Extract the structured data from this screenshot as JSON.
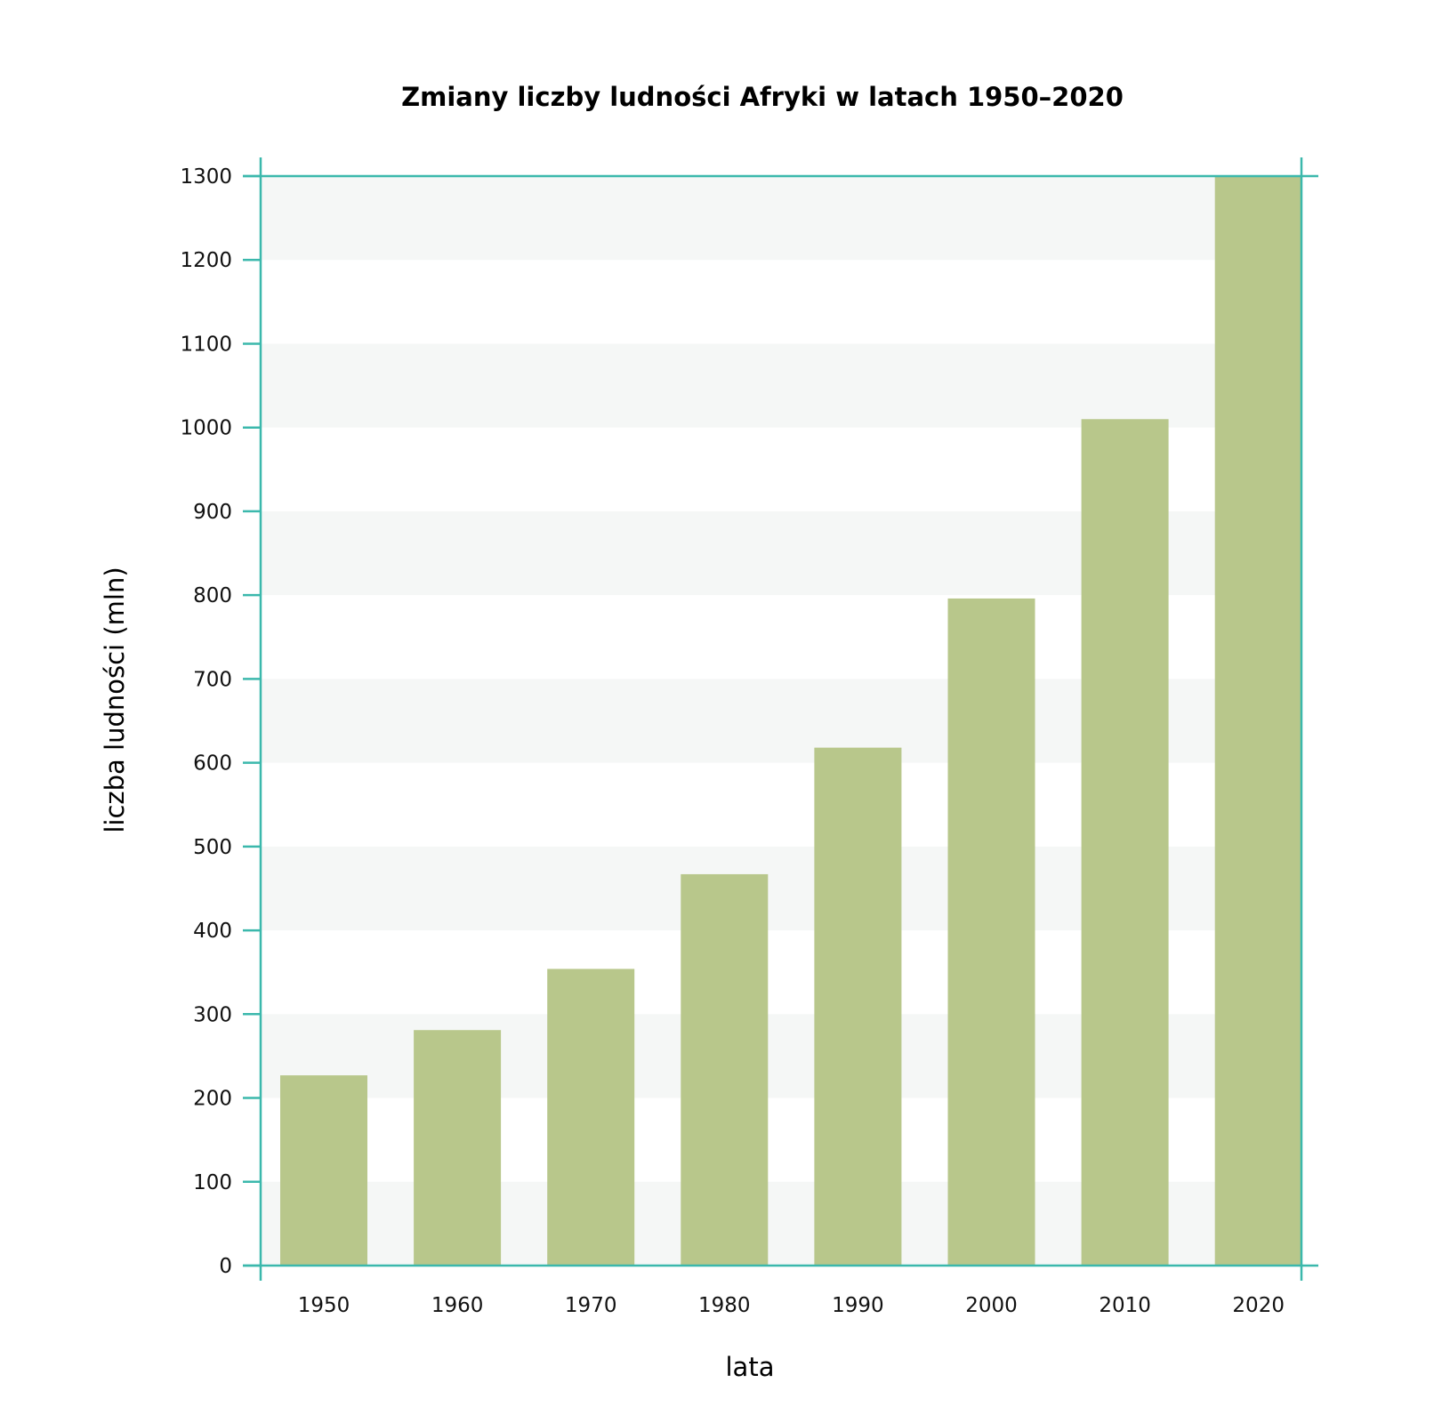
{
  "chart_data": {
    "type": "bar",
    "title": "Zmiany liczby ludności Afryki w latach 1950–2020",
    "xlabel": "lata",
    "ylabel": "liczba ludności (mln)",
    "categories": [
      "1950",
      "1960",
      "1970",
      "1980",
      "1990",
      "2000",
      "2010",
      "2020"
    ],
    "values": [
      227,
      281,
      354,
      467,
      618,
      796,
      1010,
      1300
    ],
    "ylim": [
      0,
      1300
    ],
    "yticks": [
      0,
      100,
      200,
      300,
      400,
      500,
      600,
      700,
      800,
      900,
      1000,
      1100,
      1200,
      1300
    ],
    "grid": "alternating horizontal bands",
    "legend": "none",
    "colors": {
      "bar": "#b8c78b",
      "axis": "#3bb8ac",
      "band": "#f5f7f6",
      "text": "#111111"
    }
  }
}
